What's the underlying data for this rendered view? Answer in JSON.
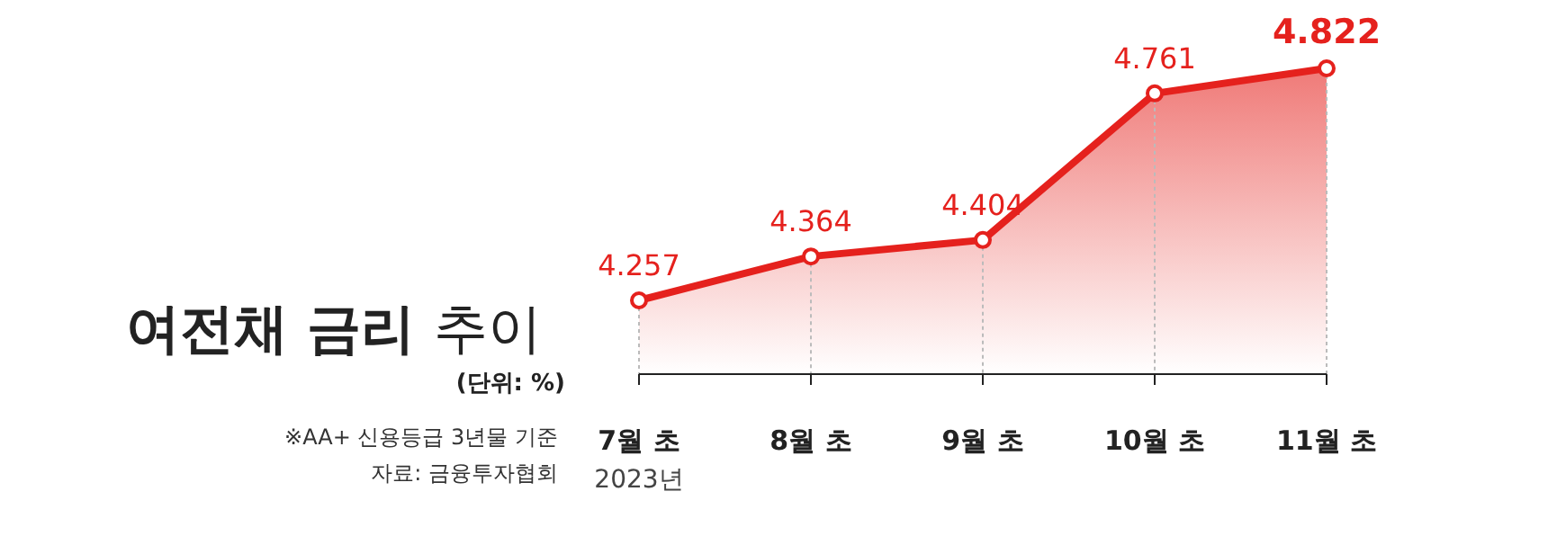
{
  "chart_data": {
    "type": "area",
    "title": "여전채 금리 추이",
    "subtitle": "(단위: %)",
    "categories": [
      "7월 초",
      "8월 초",
      "9월 초",
      "10월 초",
      "11월 초"
    ],
    "series": [
      {
        "color": "#e5211d",
        "values": [
          4.257,
          4.364,
          4.404,
          4.761,
          4.822
        ]
      }
    ],
    "data_labels": true,
    "marker": "circle",
    "annotations": [
      "2023년",
      "※AA+ 신용등급 3년물 기준",
      "자료: 금융투자협회"
    ]
  }
}
